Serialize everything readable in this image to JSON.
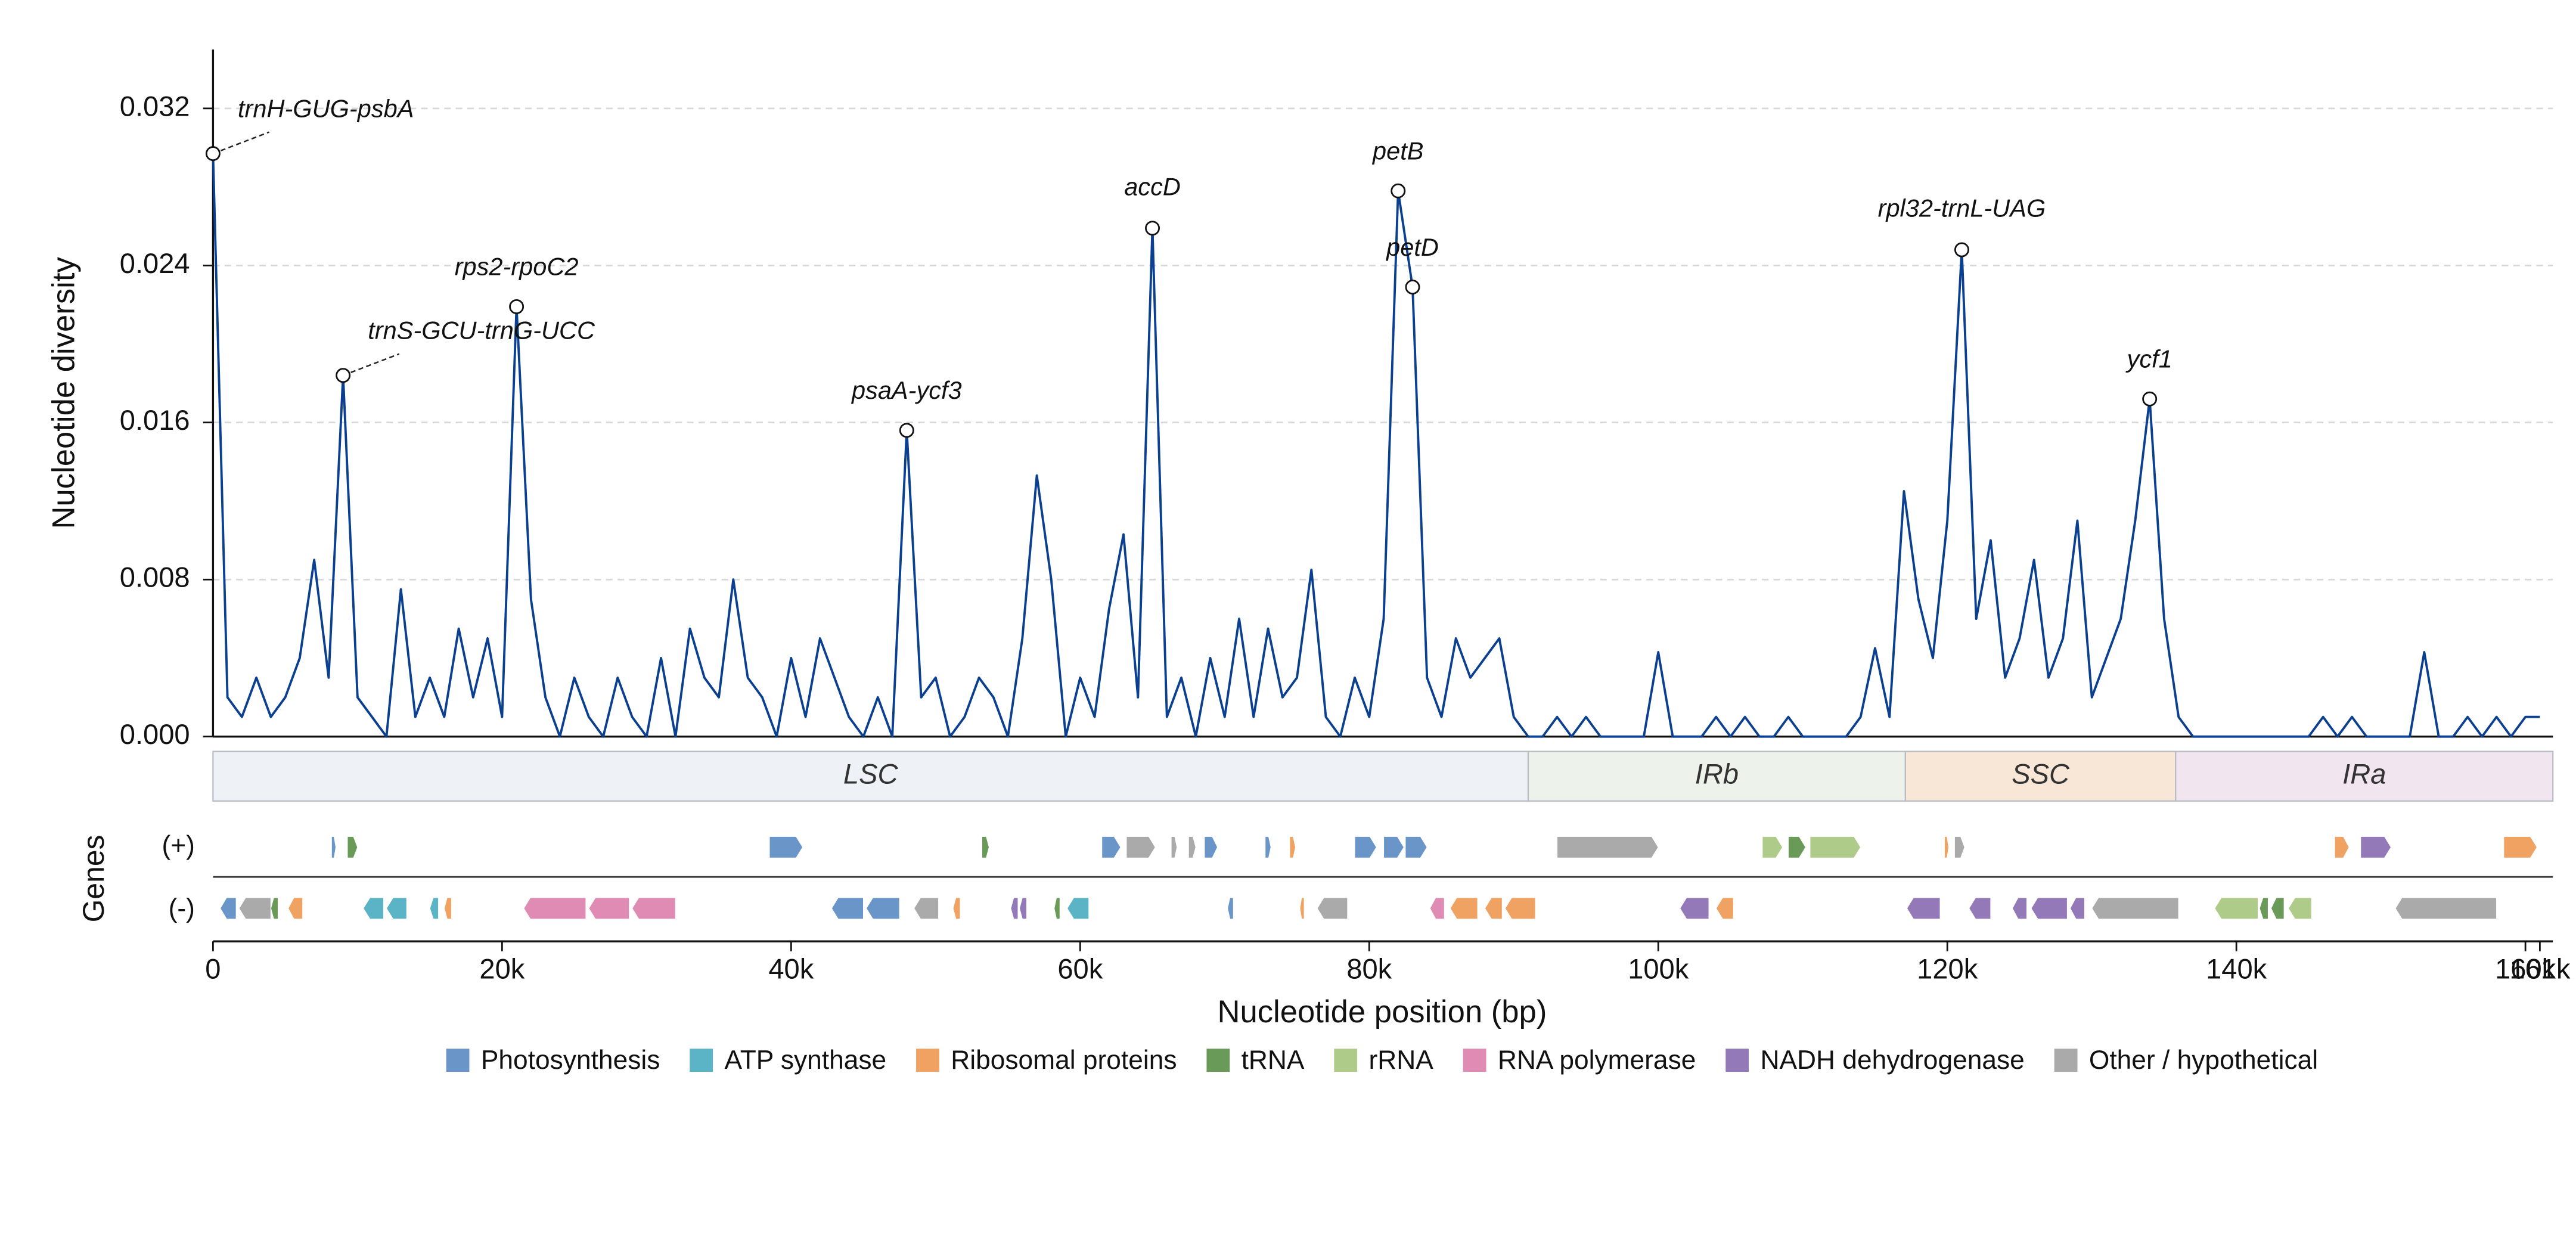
{
  "chart_data": {
    "type": "line",
    "color": "#0b3f8f",
    "ylabel": "Nucleotide diversity",
    "xlabel": "Nucleotide position (bp)",
    "genes_label": "Genes",
    "strand_labels": [
      "(+)",
      "(-)"
    ],
    "grid": true,
    "xlim": [
      0,
      161900
    ],
    "ylim": [
      0,
      0.035
    ],
    "xticks": [
      0,
      {
        "value": 20000,
        "label": "20k"
      },
      {
        "value": 40000,
        "label": "40k"
      },
      {
        "value": 60000,
        "label": "60k"
      },
      {
        "value": 80000,
        "label": "80k"
      },
      {
        "value": 100000,
        "label": "100k"
      },
      {
        "value": 120000,
        "label": "120k"
      },
      {
        "value": 140000,
        "label": "140k"
      },
      {
        "value": 160000,
        "label": "160k"
      },
      {
        "value": 161000,
        "label": "161k"
      }
    ],
    "yticks": [
      {
        "value": 0,
        "label": "0.000"
      },
      {
        "value": 0.008,
        "label": "0.008"
      },
      {
        "value": 0.016,
        "label": "0.016"
      },
      {
        "value": 0.024,
        "label": "0.024"
      },
      {
        "value": 0.032,
        "label": "0.032"
      }
    ],
    "x": [
      0,
      1000,
      2000,
      3000,
      4000,
      5000,
      6000,
      7000,
      8000,
      9000,
      10000,
      11000,
      12000,
      13000,
      14000,
      15000,
      16000,
      17000,
      18000,
      19000,
      20000,
      21000,
      22000,
      23000,
      24000,
      25000,
      26000,
      27000,
      28000,
      29000,
      30000,
      31000,
      32000,
      33000,
      34000,
      35000,
      36000,
      37000,
      38000,
      39000,
      40000,
      41000,
      42000,
      43000,
      44000,
      45000,
      46000,
      47000,
      48000,
      49000,
      50000,
      51000,
      52000,
      53000,
      54000,
      55000,
      56000,
      57000,
      58000,
      59000,
      60000,
      61000,
      62000,
      63000,
      64000,
      65000,
      66000,
      67000,
      68000,
      69000,
      70000,
      71000,
      72000,
      73000,
      74000,
      75000,
      76000,
      77000,
      78000,
      79000,
      80000,
      81000,
      82000,
      83000,
      84000,
      85000,
      86000,
      87000,
      88000,
      89000,
      90000,
      91000,
      92000,
      93000,
      94000,
      95000,
      96000,
      97000,
      98000,
      99000,
      100000,
      101000,
      102000,
      103000,
      104000,
      105000,
      106000,
      107000,
      108000,
      109000,
      110000,
      111000,
      112000,
      113000,
      114000,
      115000,
      116000,
      117000,
      118000,
      119000,
      120000,
      121000,
      122000,
      123000,
      124000,
      125000,
      126000,
      127000,
      128000,
      129000,
      130000,
      131000,
      132000,
      133000,
      134000,
      135000,
      136000,
      137000,
      138000,
      139000,
      140000,
      141000,
      142000,
      143000,
      144000,
      145000,
      146000,
      147000,
      148000,
      149000,
      150000,
      151000,
      152000,
      153000,
      154000,
      155000,
      156000,
      157000,
      158000,
      159000,
      160000,
      161000
    ],
    "values": [
      0.0297,
      0.002,
      0.001,
      0.003,
      0.001,
      0.002,
      0.004,
      0.009,
      0.003,
      0.0184,
      0.002,
      0.001,
      0,
      0.0075,
      0.001,
      0.003,
      0.001,
      0.0055,
      0.002,
      0.005,
      0.001,
      0.0219,
      0.007,
      0.002,
      0,
      0.003,
      0.001,
      0,
      0.003,
      0.001,
      0,
      0.004,
      0,
      0.0055,
      0.003,
      0.002,
      0.008,
      0.003,
      0.002,
      0,
      0.004,
      0.001,
      0.005,
      0.003,
      0.001,
      0,
      0.002,
      0,
      0.0156,
      0.002,
      0.003,
      0,
      0.001,
      0.003,
      0.002,
      0,
      0.005,
      0.0133,
      0.008,
      0,
      0.003,
      0.001,
      0.0065,
      0.0103,
      0.002,
      0.0259,
      0.001,
      0.003,
      0,
      0.004,
      0.001,
      0.006,
      0.001,
      0.0055,
      0.002,
      0.003,
      0.0085,
      0.001,
      0,
      0.003,
      0.001,
      0.006,
      0.0278,
      0.0229,
      0.003,
      0.001,
      0.005,
      0.003,
      0.004,
      0.005,
      0.001,
      0,
      0,
      0.001,
      0,
      0.001,
      0,
      0,
      0,
      0,
      0.0043,
      0,
      0,
      0,
      0.001,
      0,
      0.001,
      0,
      0,
      0.001,
      0,
      0,
      0,
      0,
      0.001,
      0.0045,
      0.001,
      0.0125,
      0.007,
      0.004,
      0.011,
      0.0248,
      0.006,
      0.01,
      0.003,
      0.005,
      0.009,
      0.003,
      0.005,
      0.011,
      0.002,
      0.004,
      0.006,
      0.011,
      0.0172,
      0.006,
      0.001,
      0,
      0,
      0,
      0,
      0,
      0,
      0,
      0,
      0,
      0.001,
      0,
      0.001,
      0,
      0,
      0,
      0,
      0.0043,
      0,
      0,
      0.001,
      0,
      0.001,
      0,
      0.001,
      0.001
    ],
    "annotations": [
      {
        "text": "trnH-GUG-psbA",
        "x": 0,
        "y": 0.0297
      },
      {
        "text": "trnS-GCU-trnG-UCC",
        "x": 9000,
        "y": 0.0184
      },
      {
        "text": "rps2-rpoC2",
        "x": 21000,
        "y": 0.0219
      },
      {
        "text": "psaA-ycf3",
        "x": 48000,
        "y": 0.0156
      },
      {
        "text": "accD",
        "x": 65000,
        "y": 0.0259
      },
      {
        "text": "petB",
        "x": 82000,
        "y": 0.0278
      },
      {
        "text": "petD",
        "x": 83000,
        "y": 0.0229
      },
      {
        "text": "rpl32-trnL-UAG",
        "x": 121000,
        "y": 0.0248
      },
      {
        "text": "ycf1",
        "x": 134000,
        "y": 0.0172
      }
    ],
    "regions": [
      {
        "name": "LSC",
        "start": 0,
        "end": 91000,
        "color": "#eef2f6"
      },
      {
        "name": "IRb",
        "start": 91000,
        "end": 117100,
        "color": "#edf3ea"
      },
      {
        "name": "SSC",
        "start": 117100,
        "end": 135800,
        "color": "#f8e6d6"
      },
      {
        "name": "IRa",
        "start": 135800,
        "end": 161900,
        "color": "#f1e5f0"
      }
    ],
    "legend": [
      {
        "name": "Photosynthesis",
        "color": "#6a95c9"
      },
      {
        "name": "ATP synthase",
        "color": "#5bb4c6"
      },
      {
        "name": "Ribosomal proteins",
        "color": "#f0a262"
      },
      {
        "name": "tRNA",
        "color": "#6a9a58"
      },
      {
        "name": "rRNA",
        "color": "#aecb8a"
      },
      {
        "name": "RNA polymerase",
        "color": "#e08bb4"
      },
      {
        "name": "NADH dehydrogenase",
        "color": "#9379b8"
      },
      {
        "name": "Other / hypothetical",
        "color": "#aaaaaa"
      }
    ],
    "genes": [
      {
        "start": 8200,
        "end": 8500,
        "strand": "+",
        "category": "Photosynthesis"
      },
      {
        "start": 9300,
        "end": 10000,
        "strand": "+",
        "category": "tRNA"
      },
      {
        "start": 38500,
        "end": 40800,
        "strand": "+",
        "category": "Photosynthesis"
      },
      {
        "start": 53200,
        "end": 53700,
        "strand": "+",
        "category": "tRNA"
      },
      {
        "start": 61500,
        "end": 62800,
        "strand": "+",
        "category": "Photosynthesis"
      },
      {
        "start": 63200,
        "end": 65200,
        "strand": "+",
        "category": "Other / hypothetical"
      },
      {
        "start": 66300,
        "end": 66700,
        "strand": "+",
        "category": "Other / hypothetical"
      },
      {
        "start": 67500,
        "end": 68000,
        "strand": "+",
        "category": "Other / hypothetical"
      },
      {
        "start": 68600,
        "end": 69500,
        "strand": "+",
        "category": "Photosynthesis"
      },
      {
        "start": 72800,
        "end": 73200,
        "strand": "+",
        "category": "Photosynthesis"
      },
      {
        "start": 74500,
        "end": 74900,
        "strand": "+",
        "category": "Ribosomal proteins"
      },
      {
        "start": 79000,
        "end": 80500,
        "strand": "+",
        "category": "Photosynthesis"
      },
      {
        "start": 81000,
        "end": 82400,
        "strand": "+",
        "category": "Photosynthesis"
      },
      {
        "start": 82500,
        "end": 84000,
        "strand": "+",
        "category": "Photosynthesis"
      },
      {
        "start": 93000,
        "end": 100000,
        "strand": "+",
        "category": "Other / hypothetical"
      },
      {
        "start": 107200,
        "end": 108600,
        "strand": "+",
        "category": "rRNA"
      },
      {
        "start": 109000,
        "end": 110200,
        "strand": "+",
        "category": "tRNA"
      },
      {
        "start": 110500,
        "end": 114000,
        "strand": "+",
        "category": "rRNA"
      },
      {
        "start": 119800,
        "end": 120100,
        "strand": "+",
        "category": "Ribosomal proteins"
      },
      {
        "start": 120500,
        "end": 121200,
        "strand": "+",
        "category": "Other / hypothetical"
      },
      {
        "start": 146800,
        "end": 147800,
        "strand": "+",
        "category": "Ribosomal proteins"
      },
      {
        "start": 148600,
        "end": 150700,
        "strand": "+",
        "category": "NADH dehydrogenase"
      },
      {
        "start": 158500,
        "end": 160800,
        "strand": "+",
        "category": "Ribosomal proteins"
      },
      {
        "start": 500,
        "end": 1600,
        "strand": "-",
        "category": "Photosynthesis"
      },
      {
        "start": 1800,
        "end": 4000,
        "strand": "-",
        "category": "Other / hypothetical"
      },
      {
        "start": 4000,
        "end": 4500,
        "strand": "-",
        "category": "tRNA"
      },
      {
        "start": 5200,
        "end": 6200,
        "strand": "-",
        "category": "Ribosomal proteins"
      },
      {
        "start": 10400,
        "end": 11800,
        "strand": "-",
        "category": "ATP synthase"
      },
      {
        "start": 12000,
        "end": 13400,
        "strand": "-",
        "category": "ATP synthase"
      },
      {
        "start": 15000,
        "end": 15600,
        "strand": "-",
        "category": "ATP synthase"
      },
      {
        "start": 16000,
        "end": 16500,
        "strand": "-",
        "category": "Ribosomal proteins"
      },
      {
        "start": 21500,
        "end": 25800,
        "strand": "-",
        "category": "RNA polymerase"
      },
      {
        "start": 26000,
        "end": 28800,
        "strand": "-",
        "category": "RNA polymerase"
      },
      {
        "start": 29000,
        "end": 32000,
        "strand": "-",
        "category": "RNA polymerase"
      },
      {
        "start": 42800,
        "end": 45000,
        "strand": "-",
        "category": "Photosynthesis"
      },
      {
        "start": 45200,
        "end": 47500,
        "strand": "-",
        "category": "Photosynthesis"
      },
      {
        "start": 48500,
        "end": 50200,
        "strand": "-",
        "category": "Other / hypothetical"
      },
      {
        "start": 51200,
        "end": 51700,
        "strand": "-",
        "category": "Ribosomal proteins"
      },
      {
        "start": 55200,
        "end": 55700,
        "strand": "-",
        "category": "NADH dehydrogenase"
      },
      {
        "start": 55800,
        "end": 56300,
        "strand": "-",
        "category": "NADH dehydrogenase"
      },
      {
        "start": 58200,
        "end": 58600,
        "strand": "-",
        "category": "tRNA"
      },
      {
        "start": 59100,
        "end": 60600,
        "strand": "-",
        "category": "ATP synthase"
      },
      {
        "start": 70200,
        "end": 70600,
        "strand": "-",
        "category": "Photosynthesis"
      },
      {
        "start": 75200,
        "end": 75500,
        "strand": "-",
        "category": "Ribosomal proteins"
      },
      {
        "start": 76400,
        "end": 78500,
        "strand": "-",
        "category": "Other / hypothetical"
      },
      {
        "start": 84200,
        "end": 85200,
        "strand": "-",
        "category": "RNA polymerase"
      },
      {
        "start": 85600,
        "end": 87500,
        "strand": "-",
        "category": "Ribosomal proteins"
      },
      {
        "start": 88000,
        "end": 89200,
        "strand": "-",
        "category": "Ribosomal proteins"
      },
      {
        "start": 89400,
        "end": 91500,
        "strand": "-",
        "category": "Ribosomal proteins"
      },
      {
        "start": 101500,
        "end": 103500,
        "strand": "-",
        "category": "NADH dehydrogenase"
      },
      {
        "start": 104000,
        "end": 105200,
        "strand": "-",
        "category": "Ribosomal proteins"
      },
      {
        "start": 117200,
        "end": 119500,
        "strand": "-",
        "category": "NADH dehydrogenase"
      },
      {
        "start": 121500,
        "end": 123000,
        "strand": "-",
        "category": "NADH dehydrogenase"
      },
      {
        "start": 124500,
        "end": 125500,
        "strand": "-",
        "category": "NADH dehydrogenase"
      },
      {
        "start": 125800,
        "end": 128300,
        "strand": "-",
        "category": "NADH dehydrogenase"
      },
      {
        "start": 128500,
        "end": 129500,
        "strand": "-",
        "category": "NADH dehydrogenase"
      },
      {
        "start": 130000,
        "end": 136000,
        "strand": "-",
        "category": "Other / hypothetical"
      },
      {
        "start": 138500,
        "end": 141500,
        "strand": "-",
        "category": "rRNA"
      },
      {
        "start": 141600,
        "end": 142200,
        "strand": "-",
        "category": "tRNA"
      },
      {
        "start": 142400,
        "end": 143300,
        "strand": "-",
        "category": "tRNA"
      },
      {
        "start": 143600,
        "end": 145200,
        "strand": "-",
        "category": "rRNA"
      },
      {
        "start": 151000,
        "end": 158000,
        "strand": "-",
        "category": "Other / hypothetical"
      }
    ]
  }
}
